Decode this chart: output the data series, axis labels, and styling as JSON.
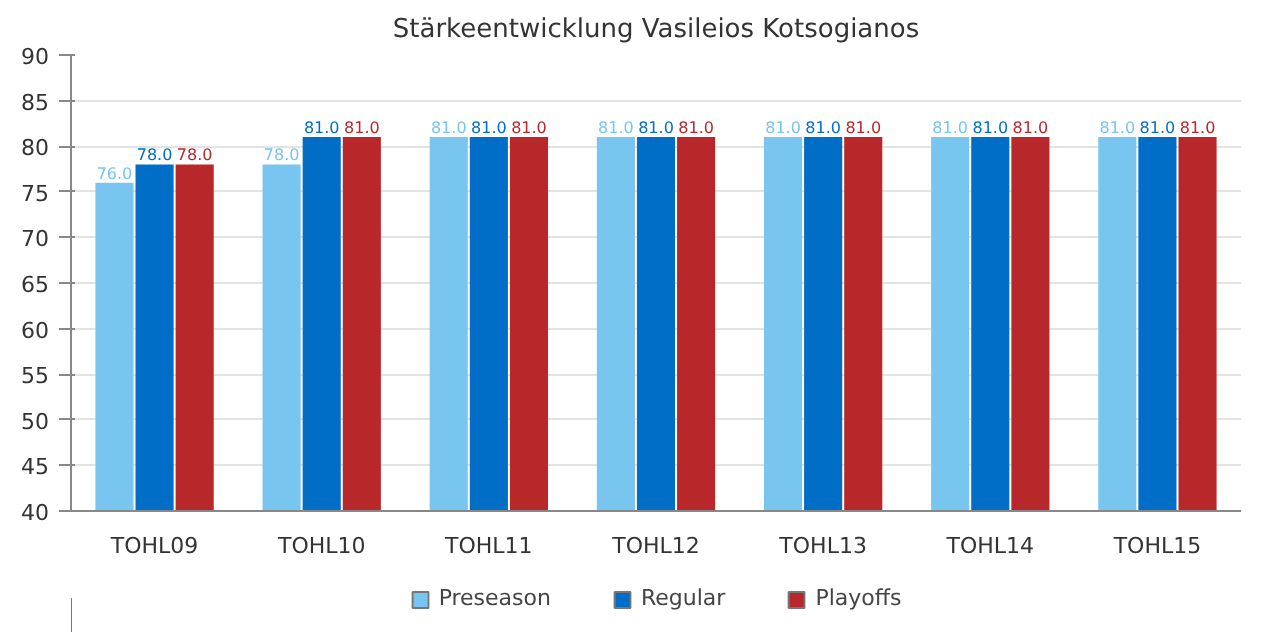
{
  "chart_data": {
    "type": "bar",
    "title": "Stärkeentwicklung Vasileios Kotsogianos",
    "categories": [
      "TOHL09",
      "TOHL10",
      "TOHL11",
      "TOHL12",
      "TOHL13",
      "TOHL14",
      "TOHL15"
    ],
    "series": [
      {
        "name": "Preseason",
        "color": "#78c5f0",
        "values": [
          76,
          78,
          81,
          81,
          81,
          81,
          81
        ],
        "value_labels": [
          "76.0",
          "78.0",
          "81.0",
          "81.0",
          "81.0",
          "81.0",
          "81.0"
        ]
      },
      {
        "name": "Regular",
        "color": "#006ec7",
        "values": [
          78,
          81,
          81,
          81,
          81,
          81,
          81
        ],
        "value_labels": [
          "78.0",
          "81.0",
          "81.0",
          "81.0",
          "81.0",
          "81.0",
          "81.0"
        ]
      },
      {
        "name": "Playoffs",
        "color": "#b8282a",
        "values": [
          78,
          81,
          81,
          81,
          81,
          81,
          81
        ],
        "value_labels": [
          "78.0",
          "81.0",
          "81.0",
          "81.0",
          "81.0",
          "81.0",
          "81.0"
        ]
      }
    ],
    "ylim": [
      40,
      90
    ],
    "yticks": [
      40,
      45,
      50,
      55,
      60,
      65,
      70,
      75,
      80,
      85,
      90
    ],
    "grid": "y",
    "legend": "bottom"
  }
}
